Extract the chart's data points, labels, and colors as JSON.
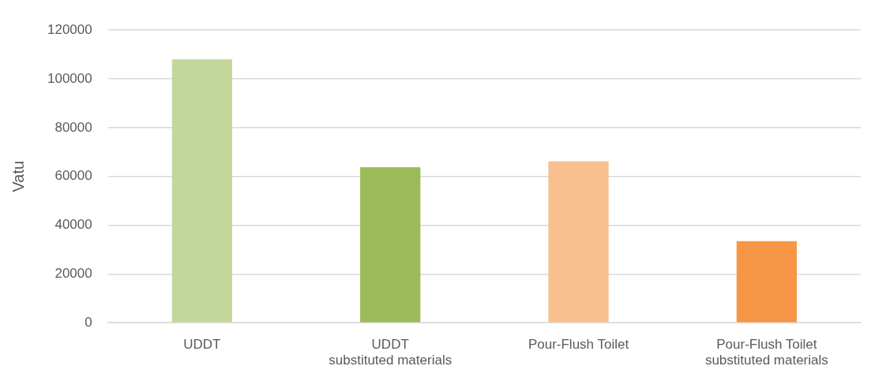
{
  "chart_data": {
    "type": "bar",
    "ylabel": "Vatu",
    "categories": [
      "UDDT",
      "UDDT\nsubstituted materials",
      "Pour-Flush Toilet",
      "Pour-Flush Toilet\nsubstituted materials"
    ],
    "values": [
      108000,
      63800,
      66200,
      33500
    ],
    "colors": [
      "#c4d79b",
      "#9bbb59",
      "#f8bf8f",
      "#f79646"
    ],
    "ylim": [
      0,
      120000
    ],
    "yticks": [
      0,
      20000,
      40000,
      60000,
      80000,
      100000,
      120000
    ],
    "grid": "y",
    "legend": false
  }
}
